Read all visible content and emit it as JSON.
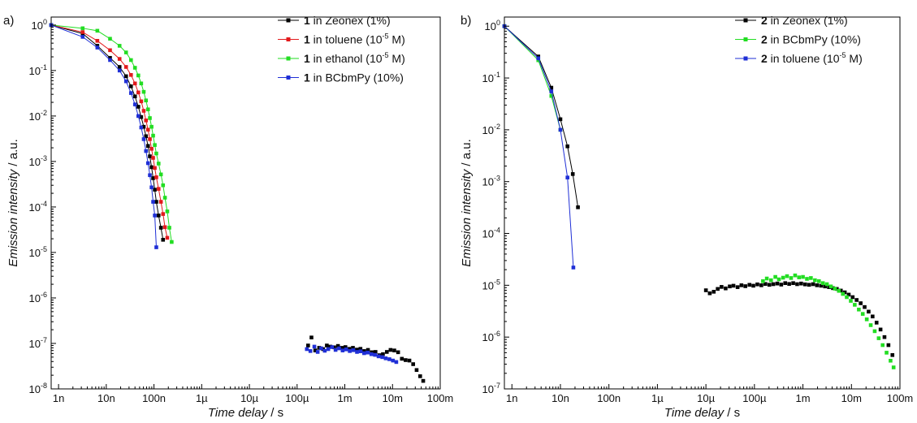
{
  "chart_data": [
    {
      "panel_label": "a)",
      "type": "scatter",
      "xscale": "log",
      "yscale": "log",
      "xlim": [
        7e-10,
        0.1
      ],
      "ylim": [
        1e-08,
        1.5
      ],
      "xlabel": "Time delay / s",
      "ylabel": "Emission intensity / a.u.",
      "xlabel_italic": "Time delay",
      "xlabel_unit": " / s",
      "ylabel_italic": "Emission intensity",
      "ylabel_unit": " / a.u.",
      "x_ticks": [
        {
          "value": 1e-09,
          "label": "1n"
        },
        {
          "value": 1e-08,
          "label": "10n"
        },
        {
          "value": 1e-07,
          "label": "100n"
        },
        {
          "value": 1e-06,
          "label": "1µ"
        },
        {
          "value": 1e-05,
          "label": "10µ"
        },
        {
          "value": 0.0001,
          "label": "100µ"
        },
        {
          "value": 0.001,
          "label": "1m"
        },
        {
          "value": 0.01,
          "label": "10m"
        },
        {
          "value": 0.1,
          "label": "100m"
        }
      ],
      "y_ticks": [
        {
          "value": 1,
          "base": "10",
          "exp": "0"
        },
        {
          "value": 0.1,
          "base": "10",
          "exp": "-1"
        },
        {
          "value": 0.01,
          "base": "10",
          "exp": "-2"
        },
        {
          "value": 0.001,
          "base": "10",
          "exp": "-3"
        },
        {
          "value": 0.0001,
          "base": "10",
          "exp": "-4"
        },
        {
          "value": 1e-05,
          "base": "10",
          "exp": "-5"
        },
        {
          "value": 1e-06,
          "base": "10",
          "exp": "-6"
        },
        {
          "value": 1e-07,
          "base": "10",
          "exp": "-7"
        },
        {
          "value": 1e-08,
          "base": "10",
          "exp": "-8"
        }
      ],
      "legend_position": "top-right",
      "series": [
        {
          "name": "1 in Zeonex (1%)",
          "legend_bold": "1",
          "legend_rest": " in Zeonex (1%)",
          "legend_sup": "",
          "legend_after": "",
          "color": "#000000",
          "prompt": {
            "x": [
              7e-10,
              3.2e-09,
              6.5e-09,
              1.2e-08,
              1.9e-08,
              2.6e-08,
              3.3e-08,
              4e-08,
              4.7e-08,
              5.4e-08,
              6.1e-08,
              6.8e-08,
              7.5e-08,
              8.2e-08,
              8.9e-08,
              9.6e-08,
              1.04e-07,
              1.12e-07,
              1.25e-07,
              1.4e-07,
              1.55e-07
            ],
            "y": [
              1.0,
              0.65,
              0.35,
              0.19,
              0.12,
              0.075,
              0.045,
              0.027,
              0.016,
              0.0095,
              0.0058,
              0.0036,
              0.0022,
              0.0013,
              0.00075,
              0.00043,
              0.00024,
              0.00013,
              6.5e-05,
              3.5e-05,
              1.9e-05
            ]
          },
          "delayed": {
            "x": [
              0.00017,
              0.0002,
              0.00024,
              0.00029,
              0.00035,
              0.00042,
              0.0005,
              0.0006,
              0.00072,
              0.00086,
              0.00103,
              0.00124,
              0.00148,
              0.00178,
              0.00213,
              0.00255,
              0.00306,
              0.00367,
              0.0044,
              0.0053,
              0.0063,
              0.0076,
              0.0091,
              0.0109,
              0.0131,
              0.0157,
              0.0188,
              0.0226,
              0.0271,
              0.032,
              0.038,
              0.044
            ],
            "y": [
              9e-08,
              1.35e-07,
              7e-08,
              8e-08,
              7.5e-08,
              9e-08,
              8.5e-08,
              8.2e-08,
              8.8e-08,
              8e-08,
              8.3e-08,
              7.6e-08,
              8e-08,
              7.3e-08,
              7.6e-08,
              6.8e-08,
              7.2e-08,
              6.4e-08,
              6.5e-08,
              5.5e-08,
              5.8e-08,
              6.5e-08,
              7.2e-08,
              7e-08,
              6.4e-08,
              4.6e-08,
              4.3e-08,
              4.2e-08,
              3.5e-08,
              2.6e-08,
              1.9e-08,
              1.5e-08
            ]
          }
        },
        {
          "name": "1 in toluene (10-5 M)",
          "legend_bold": "1",
          "legend_rest": " in toluene (10",
          "legend_sup": "-5",
          "legend_after": " M)",
          "color": "#e31a1c",
          "prompt": {
            "x": [
              7e-10,
              3.2e-09,
              6.5e-09,
              1.2e-08,
              1.9e-08,
              2.6e-08,
              3.3e-08,
              4e-08,
              4.7e-08,
              5.4e-08,
              6.1e-08,
              6.8e-08,
              7.5e-08,
              8.2e-08,
              8.9e-08,
              9.6e-08,
              1.04e-07,
              1.12e-07,
              1.25e-07,
              1.4e-07,
              1.55e-07,
              1.7e-07,
              1.9e-07
            ],
            "y": [
              1.0,
              0.7,
              0.45,
              0.28,
              0.18,
              0.12,
              0.08,
              0.052,
              0.033,
              0.021,
              0.013,
              0.008,
              0.005,
              0.0031,
              0.0019,
              0.0012,
              0.00072,
              0.00045,
              0.00025,
              0.00013,
              7e-05,
              3.6e-05,
              2.1e-05
            ]
          }
        },
        {
          "name": "1 in ethanol (10-5 M)",
          "legend_bold": "1",
          "legend_rest": " in ethanol (10",
          "legend_sup": "-5",
          "legend_after": " M)",
          "color": "#22dd22",
          "prompt": {
            "x": [
              7e-10,
              3.2e-09,
              6.5e-09,
              1.2e-08,
              1.9e-08,
              2.6e-08,
              3.3e-08,
              4e-08,
              4.7e-08,
              5.4e-08,
              6.1e-08,
              6.8e-08,
              7.5e-08,
              8.2e-08,
              8.9e-08,
              9.6e-08,
              1.04e-07,
              1.12e-07,
              1.25e-07,
              1.4e-07,
              1.55e-07,
              1.7e-07,
              1.9e-07,
              2.1e-07,
              2.35e-07
            ],
            "y": [
              1.0,
              0.85,
              0.75,
              0.5,
              0.35,
              0.25,
              0.17,
              0.115,
              0.078,
              0.052,
              0.034,
              0.022,
              0.014,
              0.009,
              0.0058,
              0.0037,
              0.0023,
              0.0015,
              0.0009,
              0.00052,
              0.0003,
              0.00016,
              8e-05,
              3.5e-05,
              1.7e-05
            ]
          }
        },
        {
          "name": "1 in BCbmPy (10%)",
          "legend_bold": "1",
          "legend_rest": " in BCbmPy (10%)",
          "legend_sup": "",
          "legend_after": "",
          "color": "#1f2fd6",
          "prompt": {
            "x": [
              7e-10,
              3.2e-09,
              6.5e-09,
              1.2e-08,
              1.9e-08,
              2.6e-08,
              3.3e-08,
              4e-08,
              4.7e-08,
              5.4e-08,
              6.1e-08,
              6.8e-08,
              7.5e-08,
              8.2e-08,
              8.9e-08,
              9.6e-08,
              1.04e-07,
              1.12e-07
            ],
            "y": [
              1.0,
              0.55,
              0.32,
              0.17,
              0.1,
              0.058,
              0.032,
              0.018,
              0.01,
              0.0056,
              0.0031,
              0.0017,
              0.00092,
              0.0005,
              0.00027,
              0.00013,
              6.5e-05,
              1.3e-05
            ]
          },
          "delayed": {
            "x": [
              0.00016,
              0.00019,
              0.00023,
              0.00027,
              0.00032,
              0.00038,
              0.00045,
              0.00054,
              0.00064,
              0.00076,
              0.0009,
              0.00107,
              0.00127,
              0.00151,
              0.0018,
              0.00214,
              0.00254,
              0.00302,
              0.0036,
              0.0043,
              0.0051,
              0.0061,
              0.0072,
              0.0086,
              0.0102,
              0.012
            ],
            "y": [
              7.5e-08,
              6.8e-08,
              8.5e-08,
              6.5e-08,
              7.8e-08,
              6.9e-08,
              7.5e-08,
              8.3e-08,
              7.2e-08,
              7.8e-08,
              7e-08,
              7.4e-08,
              6.8e-08,
              7.1e-08,
              6.5e-08,
              6.7e-08,
              6.1e-08,
              6.3e-08,
              5.8e-08,
              5.6e-08,
              5.2e-08,
              5e-08,
              4.7e-08,
              4.5e-08,
              4.2e-08,
              3.9e-08
            ]
          }
        }
      ]
    },
    {
      "panel_label": "b)",
      "type": "scatter",
      "xscale": "log",
      "yscale": "log",
      "xlim": [
        7e-10,
        0.1
      ],
      "ylim": [
        1e-07,
        1.5
      ],
      "xlabel": "Time delay / s",
      "ylabel": "Emission intensity / a.u.",
      "xlabel_italic": "Time delay",
      "xlabel_unit": " / s",
      "ylabel_italic": "Emission intensity",
      "ylabel_unit": " / a.u.",
      "x_ticks": [
        {
          "value": 1e-09,
          "label": "1n"
        },
        {
          "value": 1e-08,
          "label": "10n"
        },
        {
          "value": 1e-07,
          "label": "100n"
        },
        {
          "value": 1e-06,
          "label": "1µ"
        },
        {
          "value": 1e-05,
          "label": "10µ"
        },
        {
          "value": 0.0001,
          "label": "100µ"
        },
        {
          "value": 0.001,
          "label": "1m"
        },
        {
          "value": 0.01,
          "label": "10m"
        },
        {
          "value": 0.1,
          "label": "100m"
        }
      ],
      "y_ticks": [
        {
          "value": 1,
          "base": "10",
          "exp": "0"
        },
        {
          "value": 0.1,
          "base": "10",
          "exp": "-1"
        },
        {
          "value": 0.01,
          "base": "10",
          "exp": "-2"
        },
        {
          "value": 0.001,
          "base": "10",
          "exp": "-3"
        },
        {
          "value": 0.0001,
          "base": "10",
          "exp": "-4"
        },
        {
          "value": 1e-05,
          "base": "10",
          "exp": "-5"
        },
        {
          "value": 1e-06,
          "base": "10",
          "exp": "-6"
        },
        {
          "value": 1e-07,
          "base": "10",
          "exp": "-7"
        }
      ],
      "legend_position": "top-right",
      "series": [
        {
          "name": "2 in Zeonex (1%)",
          "legend_bold": "2",
          "legend_rest": " in Zeonex (1%)",
          "legend_sup": "",
          "legend_after": "",
          "color": "#000000",
          "prompt": {
            "x": [
              7e-10,
              3.5e-09,
              6.5e-09,
              1e-08,
              1.4e-08,
              1.8e-08,
              2.3e-08
            ],
            "y": [
              1.0,
              0.26,
              0.065,
              0.016,
              0.0048,
              0.0014,
              0.00032
            ]
          },
          "delayed": {
            "x": [
              1e-05,
              1.2e-05,
              1.45e-05,
              1.75e-05,
              2.1e-05,
              2.55e-05,
              3.1e-05,
              3.7e-05,
              4.5e-05,
              5.4e-05,
              6.5e-05,
              7.9e-05,
              9.5e-05,
              0.000115,
              0.000139,
              0.000168,
              0.000203,
              0.000245,
              0.000296,
              0.000357,
              0.000431,
              0.00052,
              0.00063,
              0.00076,
              0.00092,
              0.00111,
              0.00134,
              0.00162,
              0.00195,
              0.00236,
              0.00285,
              0.00344,
              0.00415,
              0.005,
              0.00605,
              0.0073,
              0.0088,
              0.0106,
              0.0128,
              0.0155,
              0.0187,
              0.0226,
              0.0273,
              0.033,
              0.0398,
              0.048,
              0.058,
              0.07
            ],
            "y": [
              8e-06,
              7e-06,
              7.5e-06,
              8.5e-06,
              9.3e-06,
              8.7e-06,
              9.5e-06,
              9.8e-06,
              9.2e-06,
              1e-05,
              9.6e-06,
              1.02e-05,
              9.8e-06,
              1.04e-05,
              1e-05,
              1.06e-05,
              1.02e-05,
              1.05e-05,
              1.08e-05,
              1.03e-05,
              1.1e-05,
              1.06e-05,
              1.1e-05,
              1.05e-05,
              1.08e-05,
              1.04e-05,
              1.02e-05,
              1.05e-05,
              1e-05,
              9.8e-06,
              9.5e-06,
              9.2e-06,
              8.8e-06,
              8.5e-06,
              7.9e-06,
              7.3e-06,
              6.6e-06,
              5.9e-06,
              5.2e-06,
              4.5e-06,
              3.8e-06,
              3.1e-06,
              2.5e-06,
              1.9e-06,
              1.4e-06,
              1e-06,
              7e-07,
              4.5e-07
            ]
          }
        },
        {
          "name": "2 in BCbmPy (10%)",
          "legend_bold": "2",
          "legend_rest": " in BCbmPy (10%)",
          "legend_sup": "",
          "legend_after": "",
          "color": "#22dd22",
          "prompt": {
            "x": [
              7e-10,
              3.5e-09,
              6.5e-09,
              1e-08
            ],
            "y": [
              1.0,
              0.22,
              0.045,
              0.01
            ]
          },
          "delayed": {
            "x": [
              0.00015,
              0.00018,
              0.00022,
              0.00027,
              0.00032,
              0.00039,
              0.00047,
              0.00057,
              0.00069,
              0.00083,
              0.001,
              0.00121,
              0.00146,
              0.00177,
              0.00214,
              0.00258,
              0.00312,
              0.00377,
              0.00456,
              0.0055,
              0.00665,
              0.008,
              0.0097,
              0.0117,
              0.0142,
              0.0171,
              0.0207,
              0.025,
              0.0302,
              0.0365,
              0.044,
              0.053,
              0.064,
              0.074
            ],
            "y": [
              1.2e-05,
              1.35e-05,
              1.25e-05,
              1.45e-05,
              1.3e-05,
              1.4e-05,
              1.5e-05,
              1.38e-05,
              1.55e-05,
              1.42e-05,
              1.45e-05,
              1.33e-05,
              1.38e-05,
              1.25e-05,
              1.2e-05,
              1.1e-05,
              1.05e-05,
              9.5e-06,
              8.6e-06,
              7.8e-06,
              6.8e-06,
              5.9e-06,
              5e-06,
              4.2e-06,
              3.4e-06,
              2.8e-06,
              2.2e-06,
              1.7e-06,
              1.3e-06,
              9.5e-07,
              7e-07,
              5e-07,
              3.5e-07,
              2.6e-07
            ]
          }
        },
        {
          "name": "2 in toluene (10-5 M)",
          "legend_bold": "2",
          "legend_rest": " in toluene (10",
          "legend_sup": "-5",
          "legend_after": " M)",
          "color": "#1f2fd6",
          "prompt": {
            "x": [
              7e-10,
              3.5e-09,
              6.5e-09,
              1e-08,
              1.4e-08,
              1.85e-08
            ],
            "y": [
              1.0,
              0.24,
              0.055,
              0.01,
              0.0012,
              2.2e-05
            ]
          }
        }
      ]
    }
  ]
}
